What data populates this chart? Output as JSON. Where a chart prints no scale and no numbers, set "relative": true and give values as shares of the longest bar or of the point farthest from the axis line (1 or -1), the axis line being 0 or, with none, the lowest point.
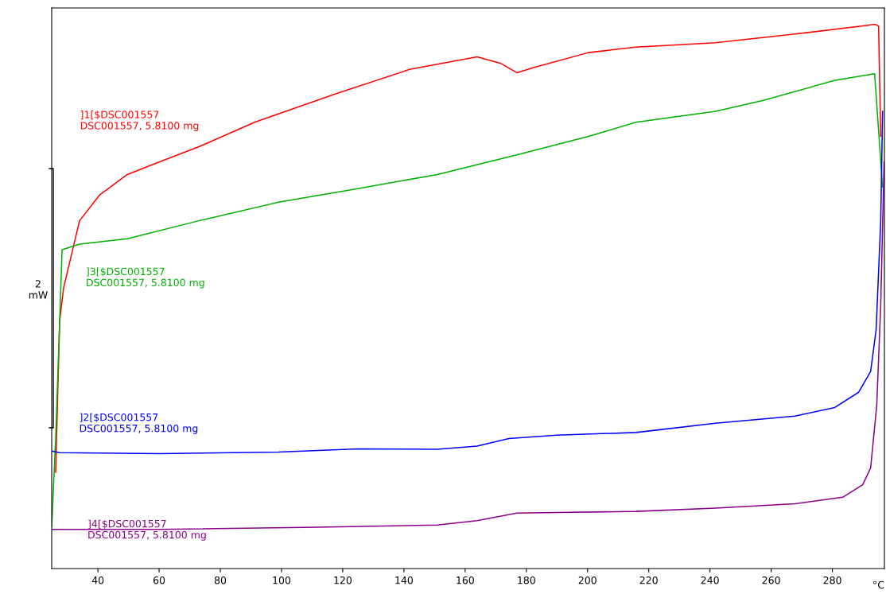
{
  "chart_data": {
    "type": "line",
    "relative": true,
    "xlabel": "°C",
    "xlim": [
      24.9,
      297
    ],
    "xticks": [
      40,
      60,
      80,
      100,
      120,
      140,
      160,
      180,
      200,
      220,
      240,
      260,
      280
    ],
    "grid": false,
    "legend": false,
    "marker": "none",
    "line_style": "solid",
    "annotations": [
      "2\nmW"
    ],
    "series": [
      {
        "name": "]1[$DSC001557\nDSC001557, 5.8100 mg",
        "color": "#ff0000",
        "x": [
          26.2,
          27.5,
          28.8,
          34.0,
          40.5,
          49.6,
          60.0,
          73.0,
          91.2,
          117.1,
          141.8,
          163.9,
          171.7,
          176.9,
          182.1,
          200.3,
          215.8,
          241.8,
          267.8,
          291.2,
          293.8,
          295.1,
          295.8
        ],
        "values": [
          0.177,
          0.455,
          0.516,
          0.639,
          0.686,
          0.724,
          0.747,
          0.775,
          0.82,
          0.871,
          0.917,
          0.94,
          0.928,
          0.911,
          0.92,
          0.948,
          0.958,
          0.966,
          0.982,
          0.998,
          1.0,
          0.997,
          0.794
        ]
      },
      {
        "name": "]3[$DSC001557\nDSC001557, 5.8100 mg",
        "color": "#00b000",
        "x": [
          24.9,
          26.2,
          28.3,
          34.0,
          49.6,
          73.0,
          99.0,
          124.9,
          150.9,
          176.9,
          200.3,
          215.8,
          241.8,
          257.4,
          280.8,
          293.8,
          296.4
        ],
        "values": [
          0.077,
          0.239,
          0.586,
          0.596,
          0.606,
          0.639,
          0.673,
          0.698,
          0.724,
          0.76,
          0.794,
          0.82,
          0.84,
          0.86,
          0.897,
          0.909,
          0.701
        ]
      },
      {
        "name": "]2[$DSC001557\nDSC001557, 5.8100 mg",
        "color": "#0000ff",
        "x": [
          24.9,
          27.5,
          60.0,
          99.0,
          124.9,
          150.9,
          163.9,
          174.3,
          189.9,
          215.8,
          241.8,
          267.8,
          280.8,
          288.6,
          292.5,
          294.3,
          295.8,
          296.4
        ],
        "values": [
          0.216,
          0.213,
          0.211,
          0.214,
          0.22,
          0.219,
          0.225,
          0.239,
          0.245,
          0.25,
          0.267,
          0.28,
          0.296,
          0.324,
          0.362,
          0.439,
          0.639,
          0.84
        ]
      },
      {
        "name": "]4[$DSC001557\nDSC001557, 5.8100 mg",
        "color": "#8b008b",
        "x": [
          24.9,
          60.0,
          111.9,
          150.9,
          163.9,
          176.9,
          189.9,
          215.8,
          241.8,
          267.8,
          283.4,
          289.9,
          292.5,
          294.5,
          295.8,
          296.9
        ],
        "values": [
          0.072,
          0.072,
          0.076,
          0.08,
          0.088,
          0.102,
          0.103,
          0.105,
          0.111,
          0.119,
          0.131,
          0.154,
          0.185,
          0.3,
          0.485,
          0.747
        ]
      }
    ]
  }
}
